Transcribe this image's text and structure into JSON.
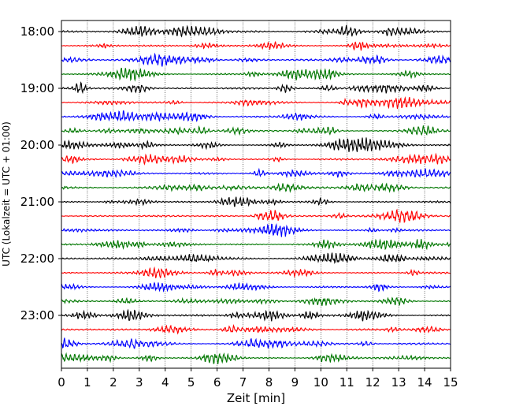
{
  "chart_data": {
    "type": "line",
    "title": "",
    "xlabel": "Zeit  [min]",
    "ylabel": "UTC (Lokalzeit = UTC + 01:00)",
    "xlim": [
      0,
      15
    ],
    "x_ticks": [
      "0",
      "1",
      "2",
      "3",
      "4",
      "5",
      "6",
      "7",
      "8",
      "9",
      "10",
      "11",
      "12",
      "13",
      "14",
      "15"
    ],
    "y_ticks": [
      "18:00",
      "19:00",
      "20:00",
      "21:00",
      "22:00",
      "23:00"
    ],
    "grid": "vertical-dotted",
    "trace_minutes": 15,
    "traces_start": "18:00",
    "trace_count": 24,
    "trace_colors": [
      "#000000",
      "#ff0000",
      "#0000ff",
      "#007700"
    ]
  }
}
